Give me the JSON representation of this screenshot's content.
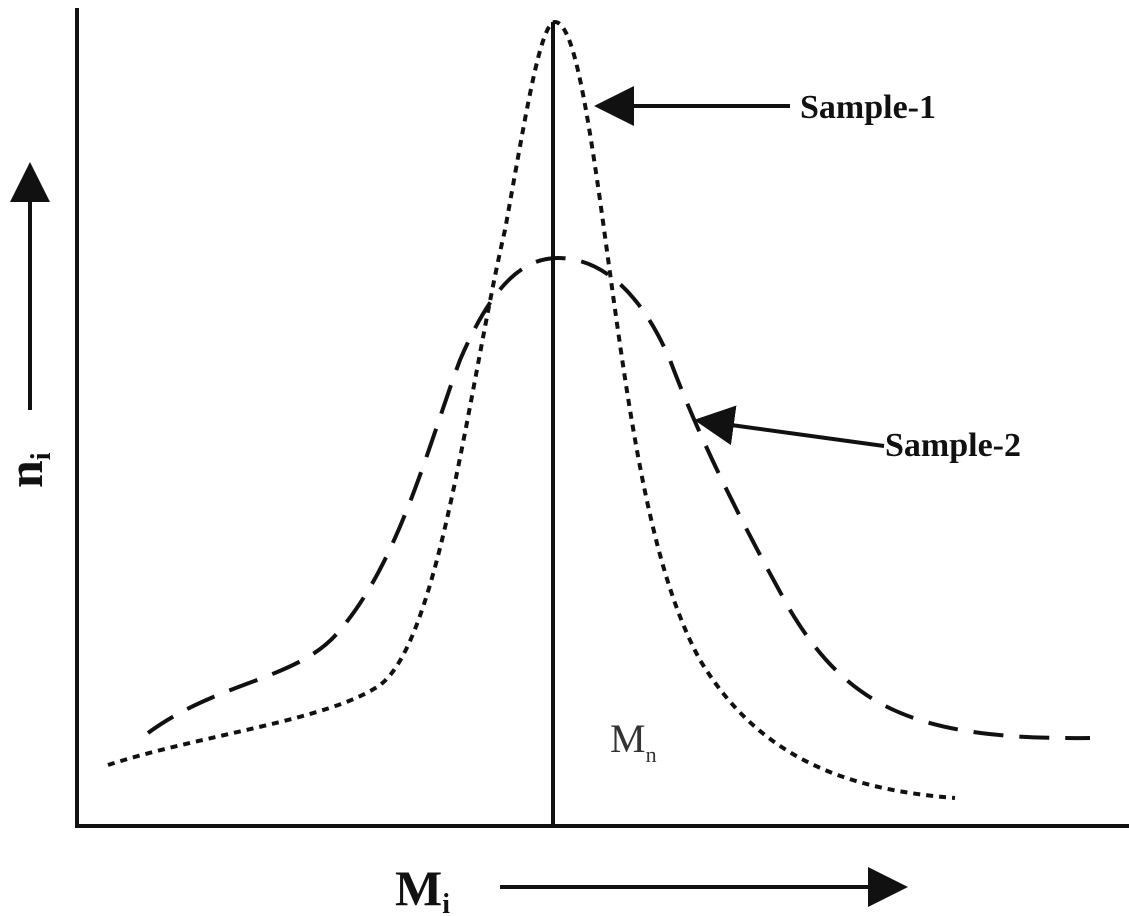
{
  "diagram": {
    "x_axis": {
      "label": "M",
      "subscript": "i"
    },
    "y_axis": {
      "label": "n",
      "subscript": "i"
    },
    "mean_line": {
      "label": "M",
      "subscript": "n"
    },
    "curves": [
      {
        "name": "Sample-1",
        "line_style": "dotted",
        "distribution": "narrow"
      },
      {
        "name": "Sample-2",
        "line_style": "dashed",
        "distribution": "broad"
      }
    ],
    "colors": {
      "ink": "#111111",
      "background": "#ffffff"
    }
  }
}
